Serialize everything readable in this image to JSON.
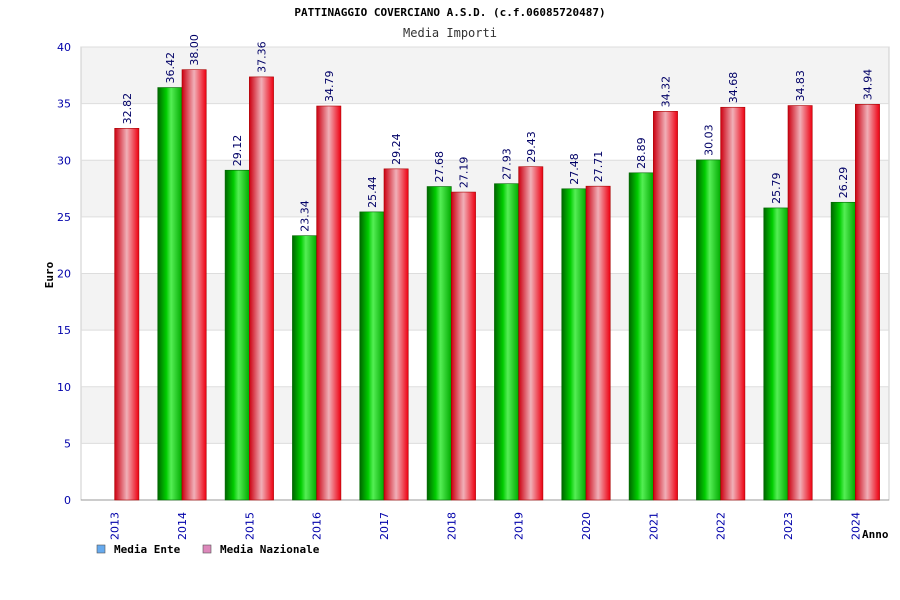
{
  "chart_data": {
    "type": "bar",
    "title": "PATTINAGGIO COVERCIANO A.S.D. (c.f.06085720487)",
    "subtitle": "Media Importi",
    "xlabel": "Anno",
    "ylabel": "Euro",
    "ylim": [
      0,
      40
    ],
    "yticks": [
      0,
      5,
      10,
      15,
      20,
      25,
      30,
      35,
      40
    ],
    "categories": [
      "2013",
      "2014",
      "2015",
      "2016",
      "2017",
      "2018",
      "2019",
      "2020",
      "2021",
      "2022",
      "2023",
      "2024"
    ],
    "series": [
      {
        "name": "Media Ente",
        "color": "#00aa00",
        "legend_color": "#66aaee",
        "values": [
          null,
          36.42,
          29.12,
          23.34,
          25.44,
          27.68,
          27.93,
          27.48,
          28.89,
          30.03,
          25.79,
          26.29
        ],
        "labels": [
          "",
          "36.42",
          "29.12",
          "23.34",
          "25.44",
          "27.68",
          "27.93",
          "27.48",
          "28.89",
          "30.03",
          "25.79",
          "26.29"
        ]
      },
      {
        "name": "Media Nazionale",
        "color": "#ee1122",
        "legend_color": "#dd88bb",
        "values": [
          32.82,
          38.0,
          37.36,
          34.79,
          29.24,
          27.19,
          29.43,
          27.71,
          34.32,
          34.68,
          34.83,
          34.94
        ],
        "labels": [
          "32.82",
          "38.00",
          "37.36",
          "34.79",
          "29.24",
          "27.19",
          "29.43",
          "27.71",
          "34.32",
          "34.68",
          "34.83",
          "34.94"
        ]
      }
    ],
    "grid": true,
    "legend": "bottom-left"
  }
}
